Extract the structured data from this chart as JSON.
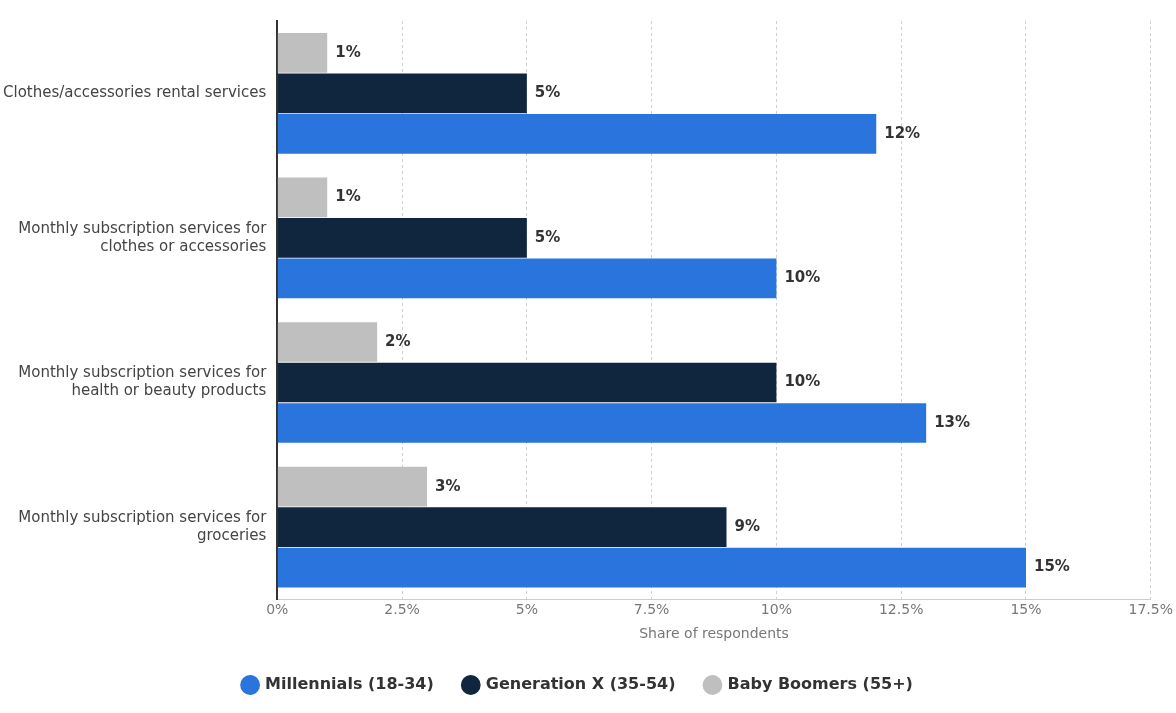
{
  "chart_data": {
    "type": "bar",
    "orientation": "horizontal",
    "xlabel": "Share of respondents",
    "categories": [
      "Clothes/accessories rental services",
      "Monthly subscription services for clothes or accessories",
      "Monthly subscription services for health or beauty products",
      "Monthly subscription services for groceries"
    ],
    "series": [
      {
        "name": "Baby Boomers (55+)",
        "color": "#bfbfbf",
        "values": [
          1,
          1,
          2,
          3
        ],
        "value_labels": [
          "1%",
          "1%",
          "2%",
          "3%"
        ]
      },
      {
        "name": "Generation X (35-54)",
        "color": "#10263f",
        "values": [
          5,
          5,
          10,
          9
        ],
        "value_labels": [
          "5%",
          "5%",
          "10%",
          "9%"
        ]
      },
      {
        "name": "Millennials (18-34)",
        "color": "#2a74de",
        "values": [
          12,
          10,
          13,
          15
        ],
        "value_labels": [
          "12%",
          "10%",
          "13%",
          "15%"
        ]
      }
    ],
    "xlim": [
      0,
      17.5
    ],
    "xticks": [
      {
        "value": 0,
        "label": "0%"
      },
      {
        "value": 2.5,
        "label": "2.5%"
      },
      {
        "value": 5,
        "label": "5%"
      },
      {
        "value": 7.5,
        "label": "7.5%"
      },
      {
        "value": 10,
        "label": "10%"
      },
      {
        "value": 12.5,
        "label": "12.5%"
      },
      {
        "value": 15,
        "label": "15%"
      },
      {
        "value": 17.5,
        "label": "17.5%"
      }
    ],
    "grid": "x",
    "legend": "bottom"
  }
}
